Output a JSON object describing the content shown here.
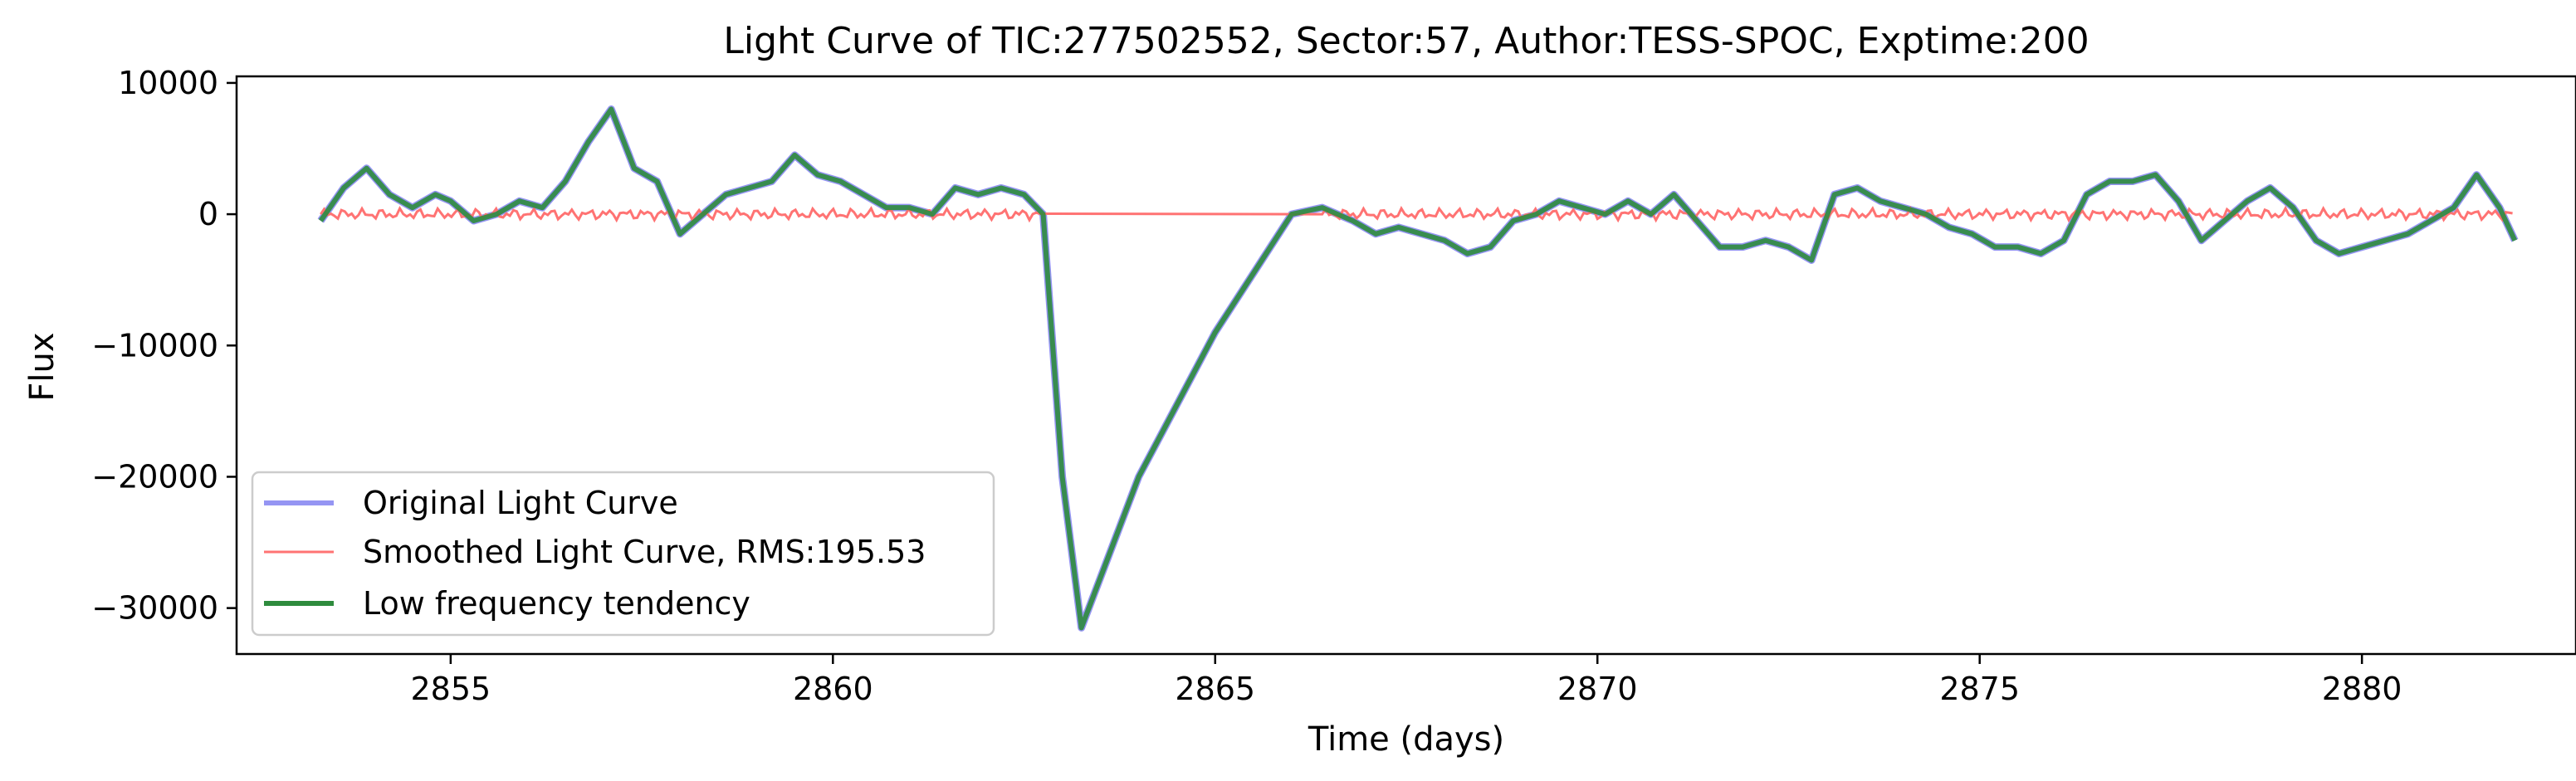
{
  "chart_data": {
    "type": "line",
    "title": "Light Curve of TIC:277502552, Sector:57, Author:TESS-SPOC, Exptime:200",
    "xlabel": "Time (days)",
    "ylabel": "Flux",
    "xlim": [
      2852.2,
      2882.8
    ],
    "ylim": [
      -33500,
      10500
    ],
    "xticks": [
      2855,
      2860,
      2865,
      2870,
      2875,
      2880
    ],
    "xtick_labels": [
      "2855",
      "2860",
      "2865",
      "2870",
      "2875",
      "2880"
    ],
    "yticks": [
      10000,
      0,
      -10000,
      -20000,
      -30000
    ],
    "ytick_labels": [
      "10000",
      "0",
      "−10000",
      "−20000",
      "−30000"
    ],
    "grid": false,
    "legend_position": "lower-left",
    "series": [
      {
        "name": "Original Light Curve",
        "color": "#7b7bf0",
        "x": [
          2853.3,
          2853.6,
          2853.9,
          2854.2,
          2854.5,
          2854.8,
          2855.0,
          2855.3,
          2855.6,
          2855.9,
          2856.2,
          2856.5,
          2856.8,
          2857.1,
          2857.4,
          2857.7,
          2858.0,
          2858.3,
          2858.6,
          2858.9,
          2859.2,
          2859.5,
          2859.8,
          2860.1,
          2860.4,
          2860.7,
          2861.0,
          2861.3,
          2861.6,
          2861.9,
          2862.2,
          2862.5,
          2862.75,
          2863.0,
          2863.25,
          2864.0,
          2865.0,
          2866.0,
          2866.4,
          2866.8,
          2867.1,
          2867.4,
          2867.7,
          2868.0,
          2868.3,
          2868.6,
          2868.9,
          2869.2,
          2869.5,
          2869.8,
          2870.1,
          2870.4,
          2870.7,
          2871.0,
          2871.3,
          2871.6,
          2871.9,
          2872.2,
          2872.5,
          2872.8,
          2873.1,
          2873.4,
          2873.7,
          2874.0,
          2874.3,
          2874.6,
          2874.9,
          2875.2,
          2875.5,
          2875.8,
          2876.1,
          2876.4,
          2876.7,
          2877.0,
          2877.3,
          2877.6,
          2877.9,
          2878.2,
          2878.5,
          2878.8,
          2879.1,
          2879.4,
          2879.7,
          2880.0,
          2880.3,
          2880.6,
          2880.9,
          2881.2,
          2881.5,
          2881.8,
          2882.0
        ],
        "y": [
          -500,
          2000,
          3500,
          1500,
          500,
          1500,
          1000,
          -500,
          0,
          1000,
          500,
          2500,
          5500,
          8000,
          3500,
          2500,
          -1500,
          0,
          1500,
          2000,
          2500,
          4500,
          3000,
          2500,
          1500,
          500,
          500,
          0,
          2000,
          1500,
          2000,
          1500,
          0,
          -20000,
          -31500,
          -20000,
          -9000,
          0,
          500,
          -500,
          -1500,
          -1000,
          -1500,
          -2000,
          -3000,
          -2500,
          -500,
          0,
          1000,
          500,
          0,
          1000,
          0,
          1500,
          -500,
          -2500,
          -2500,
          -2000,
          -2500,
          -3500,
          1500,
          2000,
          1000,
          500,
          0,
          -1000,
          -1500,
          -2500,
          -2500,
          -3000,
          -2000,
          1500,
          2500,
          2500,
          3000,
          1000,
          -2000,
          -500,
          1000,
          2000,
          500,
          -2000,
          -3000,
          -2500,
          -2000,
          -1500,
          -500,
          500,
          3000,
          500,
          -2000
        ]
      },
      {
        "name": "Smoothed Light Curve, RMS:195.53",
        "color": "#ff7373"
      },
      {
        "name": "Low frequency tendency",
        "color": "#2e8b3d"
      }
    ]
  }
}
